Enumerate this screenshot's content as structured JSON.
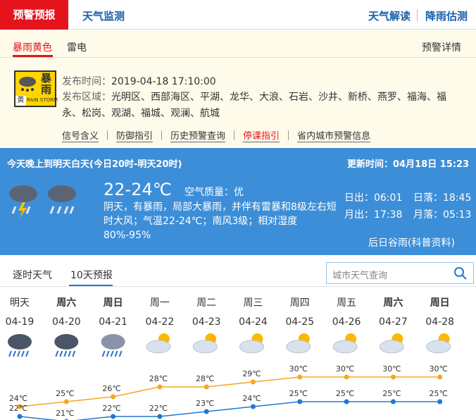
{
  "tabs": {
    "main": [
      "预警预报",
      "天气监测"
    ],
    "right": [
      "天气解读",
      "降雨估测"
    ]
  },
  "warning": {
    "tabs": [
      "暴雨黄色",
      "雷电"
    ],
    "detail_link": "预警详情",
    "icon": {
      "text": "暴雨",
      "level": "黄",
      "en": "RAIN STORM"
    },
    "time_label": "发布时间：",
    "time": "2019-04-18 17:10:00",
    "area_label": "发布区域：",
    "area": "光明区、西部海区、平湖、龙华、大浪、石岩、沙井、新桥、燕罗、福海、福永、松岗、观湖、福城、观澜、航城",
    "links": [
      "信号含义",
      "防御指引",
      "历史预警查询",
      "停课指引",
      "省内城市预警信息"
    ]
  },
  "today": {
    "period": "今天晚上到明天白天(今日20时-明天20时)",
    "update_label": "更新时间：",
    "update": "04月18日 15:23",
    "temp": "22-24℃",
    "aq_label": "空气质量：",
    "aq": "优",
    "desc": "阴天，有暴雨，局部大暴雨，并伴有雷暴和8级左右短时大风；气温22-24℃；南风3级；相对湿度80%-95%",
    "sun": [
      "日出：06:01",
      "日落：18:45",
      "月出：17:38",
      "月落：05:13"
    ],
    "solar_term": "后日谷雨(科普资料)"
  },
  "forecast": {
    "tabs": [
      "逐时天气",
      "10天预报"
    ],
    "search_placeholder": "城市天气查询",
    "days": [
      "明天",
      "周六",
      "周日",
      "周一",
      "周二",
      "周三",
      "周四",
      "周五",
      "周六",
      "周日"
    ],
    "dates": [
      "04-19",
      "04-20",
      "04-21",
      "04-22",
      "04-23",
      "04-24",
      "04-25",
      "04-26",
      "04-27",
      "04-28"
    ],
    "highs": [
      24,
      25,
      26,
      28,
      28,
      29,
      30,
      30,
      30,
      30
    ],
    "high_labels": [
      "24℃",
      "25℃",
      "26℃",
      "28℃",
      "28℃",
      "29℃",
      "30℃",
      "30℃",
      "30℃",
      "30℃"
    ],
    "lows": [
      22,
      21,
      22,
      22,
      23,
      24,
      25,
      25,
      25,
      25
    ],
    "low_labels": [
      "22℃",
      "21℃",
      "22℃",
      "22℃",
      "23℃",
      "24℃",
      "25℃",
      "25℃",
      "25℃",
      "25℃"
    ]
  }
}
